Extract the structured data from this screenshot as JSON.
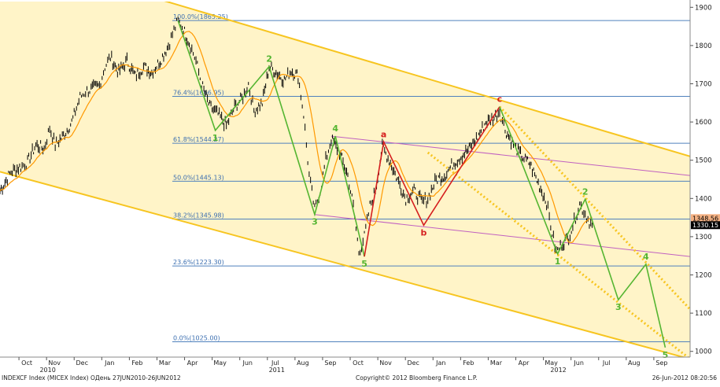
{
  "chart_data": {
    "type": "line",
    "series_name": "MICEX Index",
    "ylim": [
      985,
      1915
    ],
    "y_ticks": [
      1000,
      1100,
      1200,
      1300,
      1400,
      1500,
      1600,
      1700,
      1800,
      1900
    ],
    "x_ticks": [
      {
        "label": "Oct",
        "t": 1
      },
      {
        "label": "Nov",
        "t": 2
      },
      {
        "label": "Dec",
        "t": 3
      },
      {
        "label": "Jan",
        "t": 4
      },
      {
        "label": "Feb",
        "t": 5
      },
      {
        "label": "Mar",
        "t": 6
      },
      {
        "label": "Apr",
        "t": 7
      },
      {
        "label": "May",
        "t": 8
      },
      {
        "label": "Jun",
        "t": 9
      },
      {
        "label": "Jul",
        "t": 10
      },
      {
        "label": "Aug",
        "t": 11
      },
      {
        "label": "Sep",
        "t": 12
      },
      {
        "label": "Oct",
        "t": 13
      },
      {
        "label": "Nov",
        "t": 14
      },
      {
        "label": "Dec",
        "t": 15
      },
      {
        "label": "Jan",
        "t": 16
      },
      {
        "label": "Feb",
        "t": 17
      },
      {
        "label": "Mar",
        "t": 18
      },
      {
        "label": "Apr",
        "t": 19
      },
      {
        "label": "May",
        "t": 20
      },
      {
        "label": "Jun",
        "t": 21
      },
      {
        "label": "Jul",
        "t": 22
      },
      {
        "label": "Aug",
        "t": 23
      },
      {
        "label": "Sep",
        "t": 24
      }
    ],
    "years": [
      {
        "label": "2010",
        "t": 1.5
      },
      {
        "label": "2011",
        "t": 9.8
      },
      {
        "label": "2012",
        "t": 20
      }
    ],
    "fib_levels": [
      {
        "label": "100.0%(1865.25)",
        "value": 1865.25
      },
      {
        "label": "76.4%(1666.95)",
        "value": 1666.95
      },
      {
        "label": "61.8%(1544.27)",
        "value": 1544.27
      },
      {
        "label": "50.0%(1445.13)",
        "value": 1445.13
      },
      {
        "label": "38.2%(1345.98)",
        "value": 1345.98
      },
      {
        "label": "23.6%(1223.30)",
        "value": 1223.3
      },
      {
        "label": "0.0%(1025.00)",
        "value": 1025.0
      }
    ],
    "price_path": [
      [
        0.0,
        1420
      ],
      [
        0.4,
        1470
      ],
      [
        0.8,
        1485
      ],
      [
        1.0,
        1495
      ],
      [
        1.3,
        1540
      ],
      [
        1.6,
        1530
      ],
      [
        1.8,
        1585
      ],
      [
        2.0,
        1540
      ],
      [
        2.3,
        1565
      ],
      [
        2.6,
        1600
      ],
      [
        2.9,
        1665
      ],
      [
        3.1,
        1680
      ],
      [
        3.3,
        1685
      ],
      [
        3.6,
        1695
      ],
      [
        3.8,
        1745
      ],
      [
        4.0,
        1770
      ],
      [
        4.3,
        1730
      ],
      [
        4.6,
        1760
      ],
      [
        4.9,
        1720
      ],
      [
        5.2,
        1745
      ],
      [
        5.5,
        1730
      ],
      [
        5.8,
        1760
      ],
      [
        6.1,
        1800
      ],
      [
        6.3,
        1840
      ],
      [
        6.45,
        1865
      ],
      [
        6.6,
        1850
      ],
      [
        6.9,
        1800
      ],
      [
        7.1,
        1760
      ],
      [
        7.3,
        1700
      ],
      [
        7.6,
        1640
      ],
      [
        7.9,
        1620
      ],
      [
        8.2,
        1590
      ],
      [
        8.5,
        1640
      ],
      [
        8.8,
        1665
      ],
      [
        9.0,
        1700
      ],
      [
        9.2,
        1630
      ],
      [
        9.5,
        1650
      ],
      [
        9.75,
        1745
      ],
      [
        10.0,
        1730
      ],
      [
        10.3,
        1710
      ],
      [
        10.55,
        1735
      ],
      [
        10.8,
        1720
      ],
      [
        11.0,
        1620
      ],
      [
        11.2,
        1460
      ],
      [
        11.4,
        1370
      ],
      [
        11.6,
        1420
      ],
      [
        11.8,
        1500
      ],
      [
        12.0,
        1555
      ],
      [
        12.3,
        1520
      ],
      [
        12.6,
        1460
      ],
      [
        12.8,
        1380
      ],
      [
        13.0,
        1260
      ],
      [
        13.2,
        1300
      ],
      [
        13.4,
        1380
      ],
      [
        13.6,
        1420
      ],
      [
        13.85,
        1535
      ],
      [
        14.1,
        1500
      ],
      [
        14.4,
        1450
      ],
      [
        14.7,
        1400
      ],
      [
        15.0,
        1420
      ],
      [
        15.3,
        1390
      ],
      [
        15.5,
        1400
      ],
      [
        15.8,
        1450
      ],
      [
        16.1,
        1460
      ],
      [
        16.4,
        1490
      ],
      [
        16.7,
        1510
      ],
      [
        17.0,
        1530
      ],
      [
        17.3,
        1560
      ],
      [
        17.6,
        1600
      ],
      [
        17.9,
        1610
      ],
      [
        18.1,
        1630
      ],
      [
        18.3,
        1580
      ],
      [
        18.6,
        1540
      ],
      [
        18.9,
        1510
      ],
      [
        19.2,
        1490
      ],
      [
        19.5,
        1440
      ],
      [
        19.8,
        1390
      ],
      [
        20.0,
        1310
      ],
      [
        20.15,
        1260
      ],
      [
        20.35,
        1280
      ],
      [
        20.6,
        1300
      ],
      [
        20.8,
        1340
      ],
      [
        21.0,
        1385
      ],
      [
        21.2,
        1360
      ],
      [
        21.35,
        1340
      ],
      [
        21.45,
        1330
      ]
    ],
    "wave_green_1": [
      [
        6.45,
        1865
      ],
      [
        7.8,
        1578
      ],
      [
        9.75,
        1745
      ],
      [
        11.4,
        1358
      ],
      [
        12.15,
        1563
      ],
      [
        13.2,
        1248
      ]
    ],
    "wave_red": [
      [
        13.2,
        1248
      ],
      [
        13.9,
        1548
      ],
      [
        15.35,
        1330
      ],
      [
        18.1,
        1640
      ]
    ],
    "wave_green_2": [
      [
        18.1,
        1640
      ],
      [
        20.2,
        1255
      ],
      [
        21.2,
        1398
      ],
      [
        22.4,
        1135
      ],
      [
        23.4,
        1228
      ],
      [
        24.1,
        1010
      ]
    ],
    "labels": [
      {
        "text": "1",
        "t": 7.8,
        "v": 1578,
        "color": "green"
      },
      {
        "text": "2",
        "t": 9.75,
        "v": 1745,
        "color": "green"
      },
      {
        "text": "3",
        "t": 11.4,
        "v": 1358,
        "color": "green"
      },
      {
        "text": "4",
        "t": 12.15,
        "v": 1563,
        "color": "green"
      },
      {
        "text": "5",
        "t": 13.2,
        "v": 1248,
        "color": "green"
      },
      {
        "text": "a",
        "t": 13.9,
        "v": 1548,
        "color": "red"
      },
      {
        "text": "b",
        "t": 15.35,
        "v": 1330,
        "color": "red"
      },
      {
        "text": "c",
        "t": 18.1,
        "v": 1640,
        "color": "red"
      },
      {
        "text": "1",
        "t": 20.2,
        "v": 1255,
        "color": "green"
      },
      {
        "text": "2",
        "t": 21.2,
        "v": 1398,
        "color": "green"
      },
      {
        "text": "3",
        "t": 22.4,
        "v": 1135,
        "color": "green"
      },
      {
        "text": "4",
        "t": 23.4,
        "v": 1228,
        "color": "green"
      },
      {
        "text": "5",
        "t": 24.1,
        "v": 1010,
        "color": "green"
      }
    ],
    "channel_main": {
      "upper": [
        [
          3.0,
          1980
        ],
        [
          25.0,
          1510
        ]
      ],
      "lower": [
        [
          0.0,
          1470
        ],
        [
          25.0,
          980
        ]
      ]
    },
    "channel_small": {
      "upper": [
        [
          12.0,
          1563
        ],
        [
          25.0,
          1460
        ]
      ],
      "lower": [
        [
          11.4,
          1358
        ],
        [
          25.0,
          1248
        ]
      ]
    },
    "dotted_upper": [
      [
        18.1,
        1640
      ],
      [
        25.0,
        1110
      ]
    ],
    "dotted_lower": [
      [
        15.5,
        1520
      ],
      [
        25.0,
        980
      ]
    ],
    "price_labels": [
      {
        "text": "1348.56",
        "value": 1348.56,
        "bg": "#f4b183",
        "fg": "#000000"
      },
      {
        "text": "1330.15",
        "value": 1330.15,
        "bg": "#000000",
        "fg": "#ffffff"
      }
    ],
    "colors": {
      "price": "#000000",
      "moving_average": "#ff9900",
      "wave_green": "#55b531",
      "wave_red": "#d51f1f",
      "fib_line": "#4f81bd",
      "fib_text": "#3c6fb0",
      "channel": "#f7c520",
      "channel_fill": "#fff4c8",
      "small_channel": "#c060c0"
    }
  },
  "footer": {
    "left": "INDEXCF Index (MICEX Index) ОДень 27JUN2010-26JUN2012",
    "center": "Copyright© 2012 Bloomberg Finance L.P.",
    "right": "26-Jun-2012 08:20:56"
  }
}
